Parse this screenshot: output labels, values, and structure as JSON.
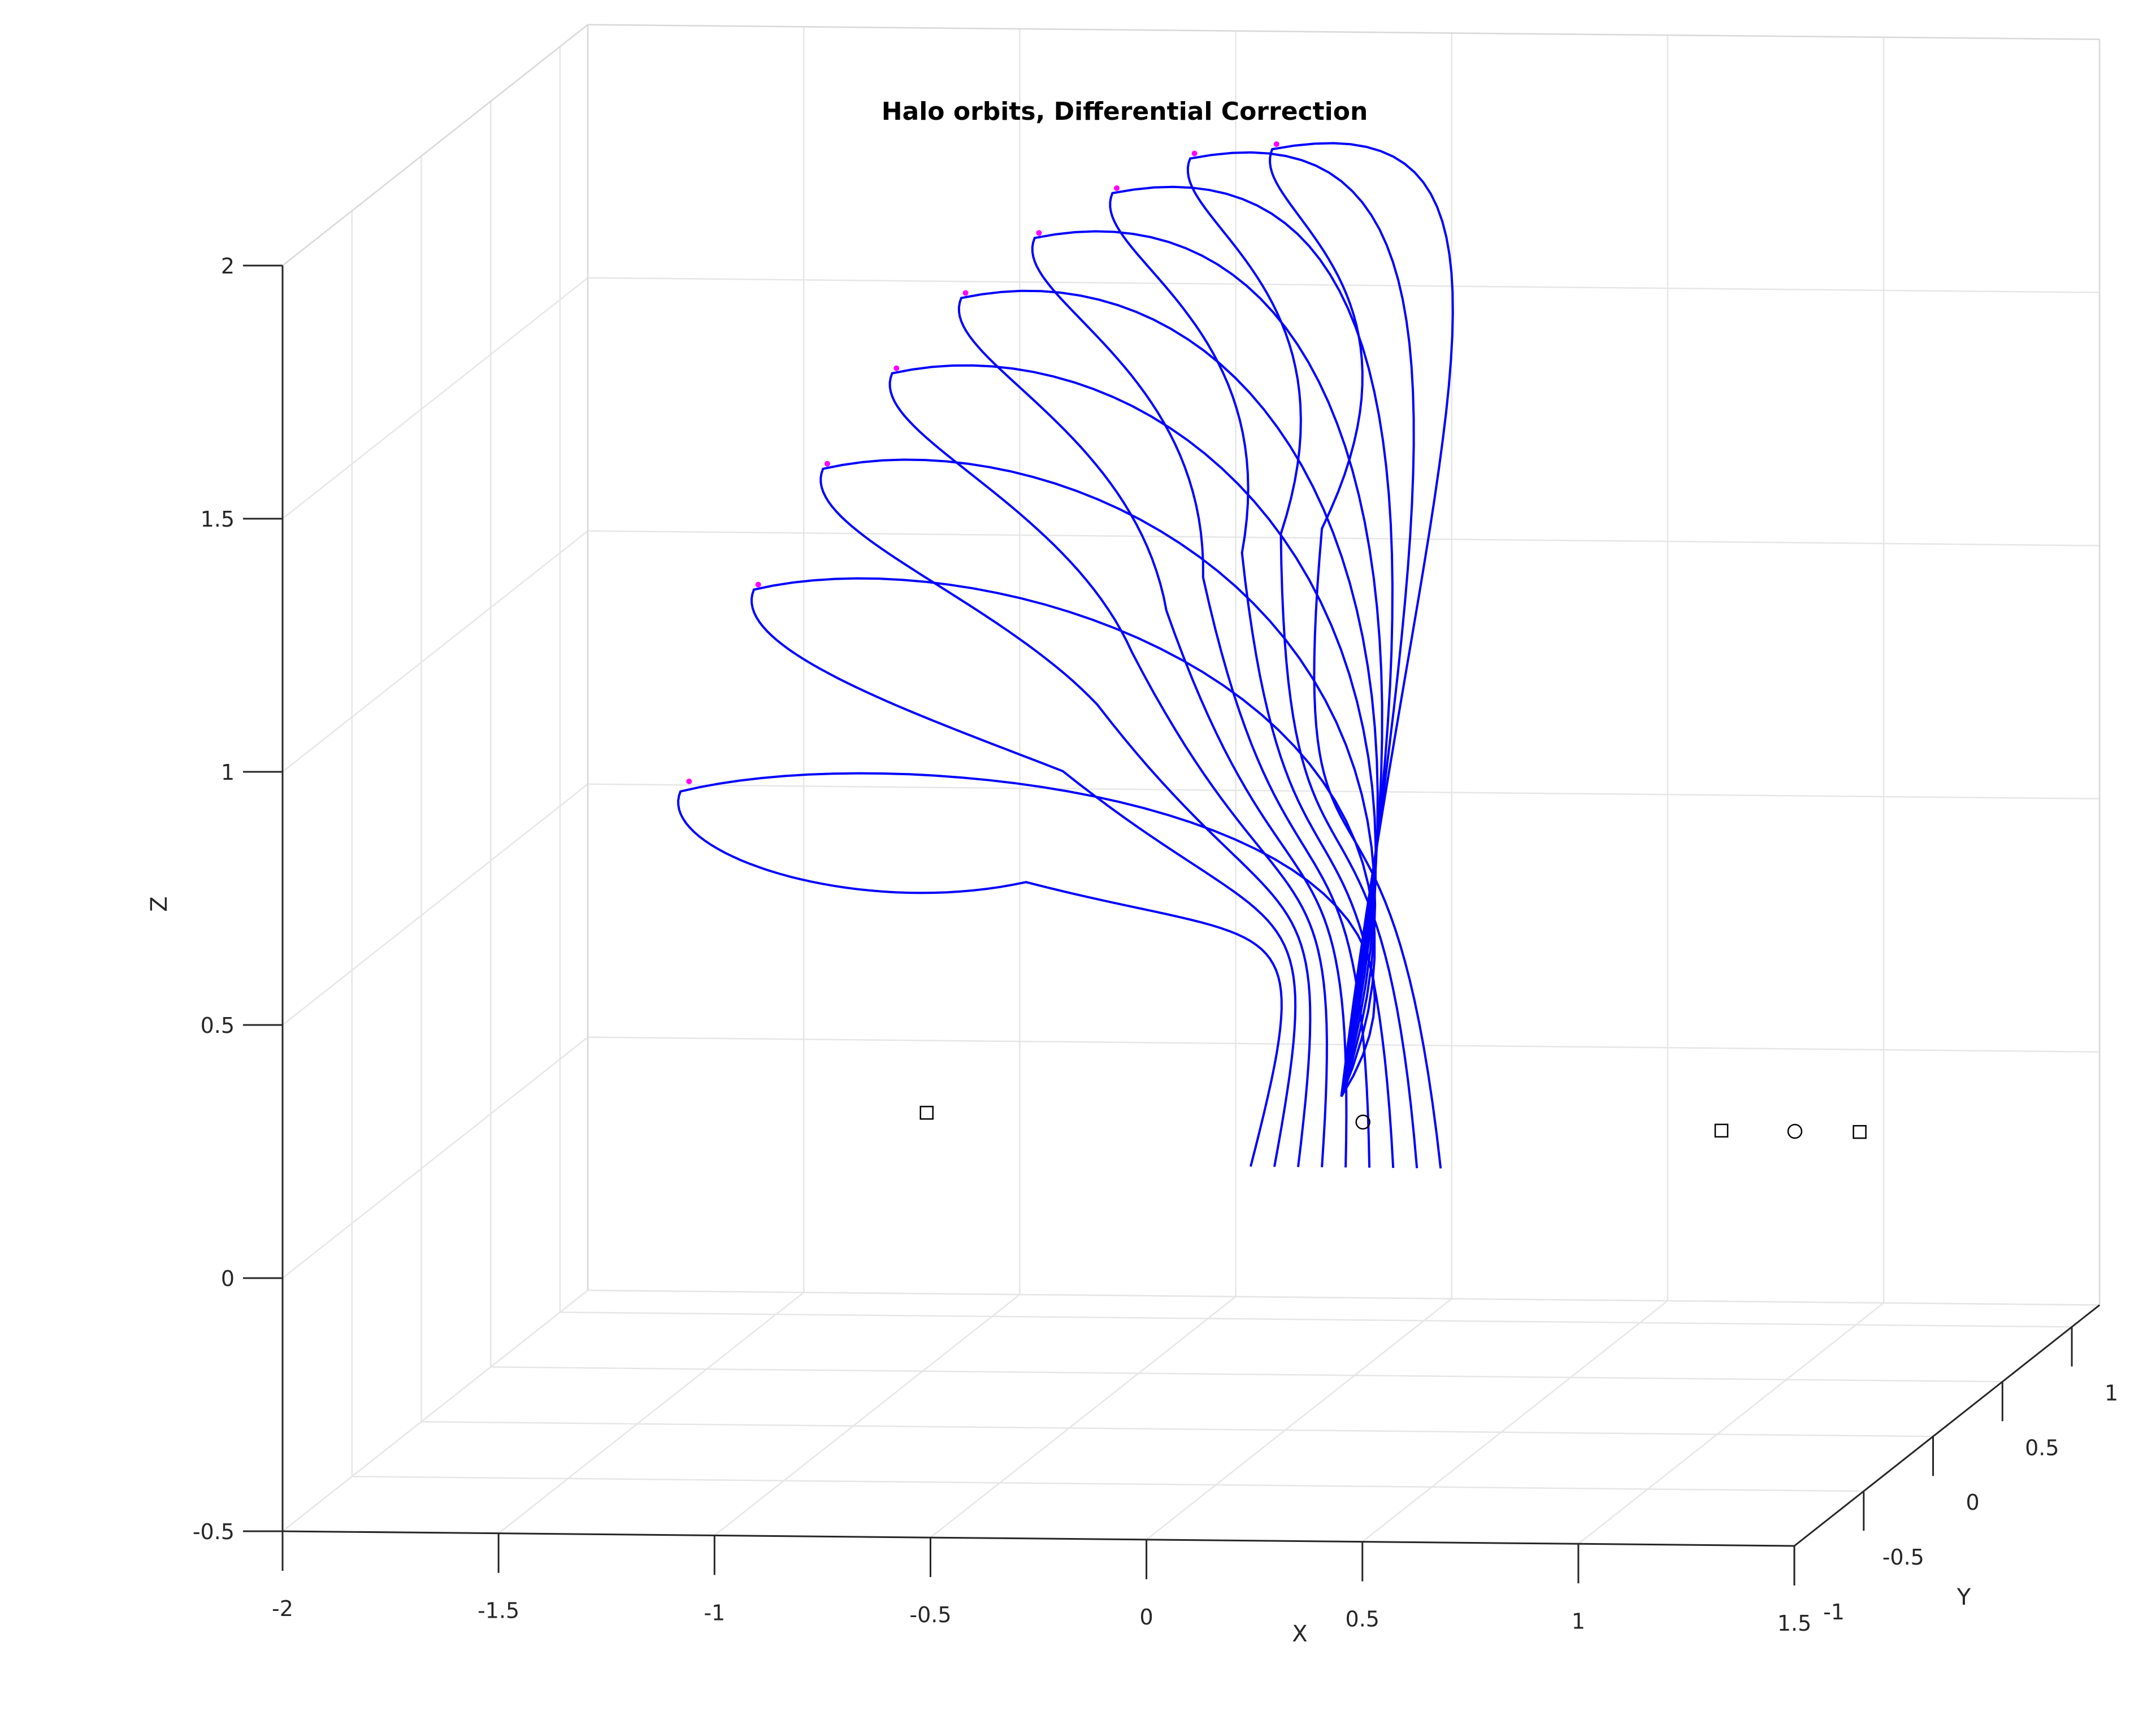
{
  "chart_data": {
    "type": "line",
    "projection": "3d",
    "title": "Halo orbits, Differential Correction",
    "xlabel": "X",
    "ylabel": "Y",
    "zlabel": "Z",
    "xlim": [
      -2,
      1.5
    ],
    "ylim": [
      -1,
      1.2
    ],
    "zlim": [
      -0.5,
      2.0
    ],
    "xticks": [
      "-2",
      "-1.5",
      "-1",
      "-0.5",
      "0",
      "0.5",
      "1",
      "1.5"
    ],
    "yticks": [
      "-1",
      "-0.5",
      "0",
      "0.5",
      "1"
    ],
    "zticks": [
      "-0.5",
      "0",
      "0.5",
      "1",
      "1.5",
      "2"
    ],
    "grid": true,
    "box": true,
    "legend": "none",
    "colors": {
      "orbit": "#0000ff",
      "start_marker": "#ff00ff",
      "grid": "#e6e6e6",
      "axis": "#262626"
    },
    "family_x_range": [
      -1.4,
      -0.05
    ],
    "family_y_range": [
      -0.6,
      0.55
    ],
    "family_z_range": [
      0.05,
      2.05
    ],
    "series": [
      {
        "turn_point": [
          -1.4,
          0.75
        ],
        "start_point": [
          -1.38,
          0.77
        ]
      },
      {
        "turn_point": [
          -1.23,
          1.15
        ],
        "start_point": [
          -1.22,
          1.16
        ]
      },
      {
        "turn_point": [
          -1.07,
          1.39
        ],
        "start_point": [
          -1.06,
          1.4
        ]
      },
      {
        "turn_point": [
          -0.91,
          1.58
        ],
        "start_point": [
          -0.9,
          1.59
        ]
      },
      {
        "turn_point": [
          -0.75,
          1.73
        ],
        "start_point": [
          -0.74,
          1.74
        ]
      },
      {
        "turn_point": [
          -0.58,
          1.85
        ],
        "start_point": [
          -0.57,
          1.86
        ]
      },
      {
        "turn_point": [
          -0.4,
          1.94
        ],
        "start_point": [
          -0.39,
          1.95
        ]
      },
      {
        "turn_point": [
          -0.22,
          2.01
        ],
        "start_point": [
          -0.21,
          2.02
        ]
      },
      {
        "turn_point": [
          -0.03,
          2.03
        ],
        "start_point": [
          -0.02,
          2.04
        ]
      }
    ],
    "bodies": [
      {
        "marker": "square",
        "x": -0.83,
        "z": 0.12
      },
      {
        "marker": "circle",
        "x": 0.18,
        "z": 0.11
      },
      {
        "marker": "square",
        "x": 1.01,
        "z": 0.1
      },
      {
        "marker": "circle",
        "x": 1.18,
        "z": 0.1
      },
      {
        "marker": "square",
        "x": 1.33,
        "z": 0.1
      }
    ]
  }
}
